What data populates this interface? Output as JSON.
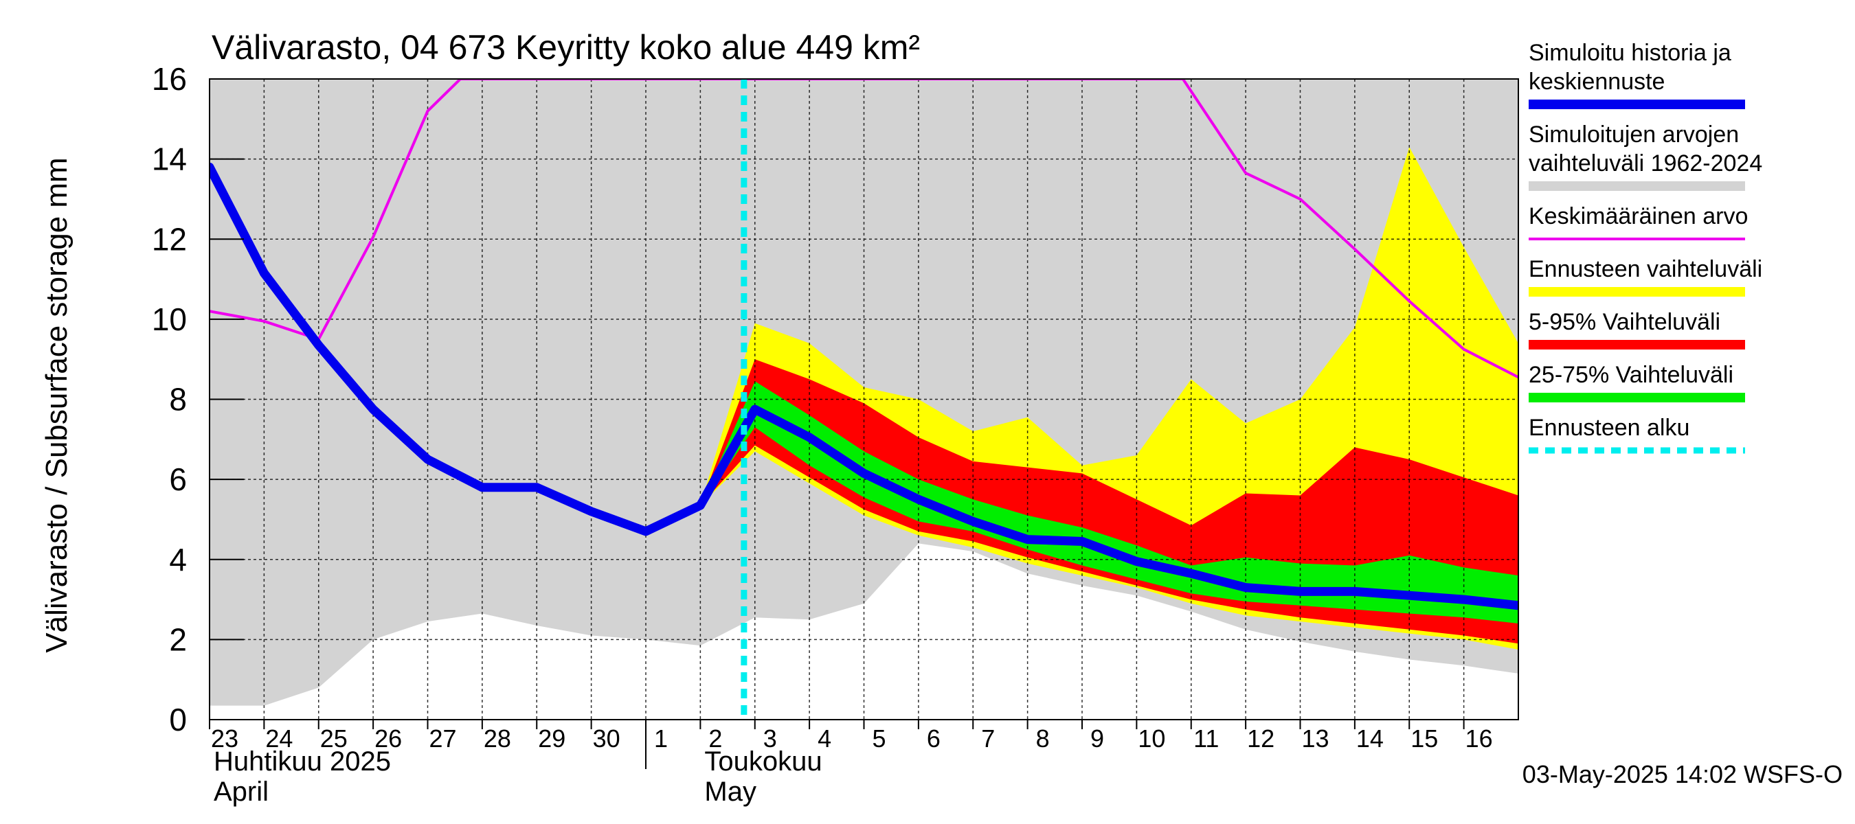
{
  "chart_data": {
    "type": "area",
    "title": "Välivarasto, 04 673 Keyritty koko alue 449 km²",
    "ylabel": "Välivarasto / Subsurface storage  mm",
    "ylim": [
      0,
      16
    ],
    "yticks": [
      0,
      2,
      4,
      6,
      8,
      10,
      12,
      14,
      16
    ],
    "x_start_day": 23,
    "x_end_day": 47,
    "x_ticks": [
      {
        "day": 23,
        "label": "23"
      },
      {
        "day": 24,
        "label": "24"
      },
      {
        "day": 25,
        "label": "25"
      },
      {
        "day": 26,
        "label": "26"
      },
      {
        "day": 27,
        "label": "27"
      },
      {
        "day": 28,
        "label": "28"
      },
      {
        "day": 29,
        "label": "29"
      },
      {
        "day": 30,
        "label": "30"
      },
      {
        "day": 31,
        "label": "1"
      },
      {
        "day": 32,
        "label": "2"
      },
      {
        "day": 33,
        "label": "3"
      },
      {
        "day": 34,
        "label": "4"
      },
      {
        "day": 35,
        "label": "5"
      },
      {
        "day": 36,
        "label": "6"
      },
      {
        "day": 37,
        "label": "7"
      },
      {
        "day": 38,
        "label": "8"
      },
      {
        "day": 39,
        "label": "9"
      },
      {
        "day": 40,
        "label": "10"
      },
      {
        "day": 41,
        "label": "11"
      },
      {
        "day": 42,
        "label": "12"
      },
      {
        "day": 43,
        "label": "13"
      },
      {
        "day": 44,
        "label": "14"
      },
      {
        "day": 45,
        "label": "15"
      },
      {
        "day": 46,
        "label": "16"
      }
    ],
    "month_labels": [
      {
        "day": 23,
        "line1": "Huhtikuu  2025",
        "line2": "April"
      },
      {
        "day": 32,
        "line1": "Toukokuu",
        "line2": "May"
      }
    ],
    "month_separator_day": 31,
    "forecast_start_day": 32.8,
    "series": [
      {
        "name": "Simuloitujen arvojen vaihteluväli 1962-2024",
        "kind": "band",
        "color": "#d3d3d3",
        "x": [
          23,
          24,
          25,
          26,
          27,
          28,
          29,
          30,
          31,
          32,
          33,
          34,
          35,
          36,
          37,
          38,
          39,
          40,
          41,
          42,
          43,
          44,
          45,
          46,
          47
        ],
        "lower": [
          0.35,
          0.35,
          0.8,
          2.0,
          2.45,
          2.65,
          2.35,
          2.1,
          2.0,
          1.85,
          2.55,
          2.5,
          2.9,
          4.4,
          4.2,
          3.65,
          3.35,
          3.1,
          2.7,
          2.25,
          1.95,
          1.7,
          1.5,
          1.35,
          1.15
        ],
        "upper": [
          16,
          16,
          16,
          16,
          16,
          16,
          16,
          16,
          16,
          16,
          16,
          16,
          16,
          16,
          16,
          16,
          16,
          16,
          16,
          16,
          16,
          16,
          16,
          16,
          16
        ]
      },
      {
        "name": "Ennusteen vaihteluväli",
        "kind": "band",
        "color": "#ffff00",
        "x": [
          32,
          33,
          34,
          35,
          36,
          37,
          38,
          39,
          40,
          41,
          42,
          43,
          44,
          45,
          46,
          47
        ],
        "lower": [
          5.35,
          6.7,
          5.9,
          5.1,
          4.6,
          4.3,
          3.9,
          3.6,
          3.3,
          2.9,
          2.6,
          2.45,
          2.3,
          2.15,
          2.0,
          1.75
        ],
        "upper": [
          5.35,
          9.9,
          9.4,
          8.3,
          8.0,
          7.2,
          7.55,
          6.35,
          6.6,
          8.5,
          7.4,
          8.0,
          9.8,
          14.3,
          11.8,
          9.4
        ]
      },
      {
        "name": "5-95% Vaihteluväli",
        "kind": "band",
        "color": "#ff0000",
        "x": [
          32,
          33,
          34,
          35,
          36,
          37,
          38,
          39,
          40,
          41,
          42,
          43,
          44,
          45,
          46,
          47
        ],
        "lower": [
          5.35,
          6.85,
          6.05,
          5.25,
          4.7,
          4.45,
          4.05,
          3.7,
          3.35,
          3.0,
          2.75,
          2.55,
          2.4,
          2.25,
          2.1,
          1.9
        ],
        "upper": [
          5.35,
          9.0,
          8.5,
          7.9,
          7.05,
          6.45,
          6.3,
          6.15,
          5.5,
          4.85,
          5.65,
          5.6,
          6.8,
          6.5,
          6.05,
          5.6
        ]
      },
      {
        "name": "25-75% Vaihteluväli",
        "kind": "band",
        "color": "#00ee00",
        "x": [
          32,
          33,
          34,
          35,
          36,
          37,
          38,
          39,
          40,
          41,
          42,
          43,
          44,
          45,
          46,
          47
        ],
        "lower": [
          5.35,
          7.3,
          6.35,
          5.55,
          4.95,
          4.7,
          4.25,
          3.85,
          3.5,
          3.15,
          2.95,
          2.85,
          2.75,
          2.65,
          2.55,
          2.4
        ],
        "upper": [
          5.35,
          8.45,
          7.6,
          6.7,
          6.0,
          5.5,
          5.1,
          4.8,
          4.35,
          3.85,
          4.05,
          3.9,
          3.85,
          4.1,
          3.8,
          3.6
        ]
      },
      {
        "name": "Keskimääräinen arvo",
        "kind": "line",
        "color": "#ee00ee",
        "x": [
          23,
          24,
          25,
          26,
          27,
          27.6,
          40.85,
          42,
          43,
          44,
          45,
          46,
          47
        ],
        "values": [
          10.2,
          9.95,
          9.5,
          12.05,
          15.2,
          16,
          16,
          13.65,
          13.0,
          11.75,
          10.45,
          9.25,
          8.55
        ]
      },
      {
        "name": "Simuloitu historia ja keskiennuste",
        "kind": "line",
        "color": "#0000ee",
        "x": [
          23,
          24,
          25,
          26,
          27,
          28,
          29,
          30,
          31,
          32,
          33,
          34,
          35,
          36,
          37,
          38,
          39,
          40,
          41,
          42,
          43,
          44,
          45,
          46,
          47
        ],
        "values": [
          13.8,
          11.15,
          9.35,
          7.75,
          6.5,
          5.8,
          5.8,
          5.2,
          4.7,
          5.35,
          7.75,
          7.05,
          6.15,
          5.5,
          4.95,
          4.5,
          4.45,
          3.95,
          3.65,
          3.3,
          3.2,
          3.2,
          3.1,
          3.0,
          2.85
        ]
      }
    ],
    "legend": [
      {
        "lines": [
          "Simuloitu historia ja",
          "keskiennuste"
        ],
        "color": "#0000ee",
        "style": "line"
      },
      {
        "lines": [
          "Simuloitujen arvojen",
          "vaihteluväli 1962-2024"
        ],
        "color": "#d3d3d3",
        "style": "line"
      },
      {
        "lines": [
          "Keskimääräinen arvo"
        ],
        "color": "#ee00ee",
        "style": "thin"
      },
      {
        "lines": [
          "Ennusteen vaihteluväli"
        ],
        "color": "#ffff00",
        "style": "line"
      },
      {
        "lines": [
          "5-95% Vaihteluväli"
        ],
        "color": "#ff0000",
        "style": "line"
      },
      {
        "lines": [
          "25-75% Vaihteluväli"
        ],
        "color": "#00ee00",
        "style": "line"
      },
      {
        "lines": [
          "Ennusteen alku"
        ],
        "color": "#00eeee",
        "style": "dashed"
      }
    ],
    "footer": "03-May-2025 14:02 WSFS-O"
  }
}
